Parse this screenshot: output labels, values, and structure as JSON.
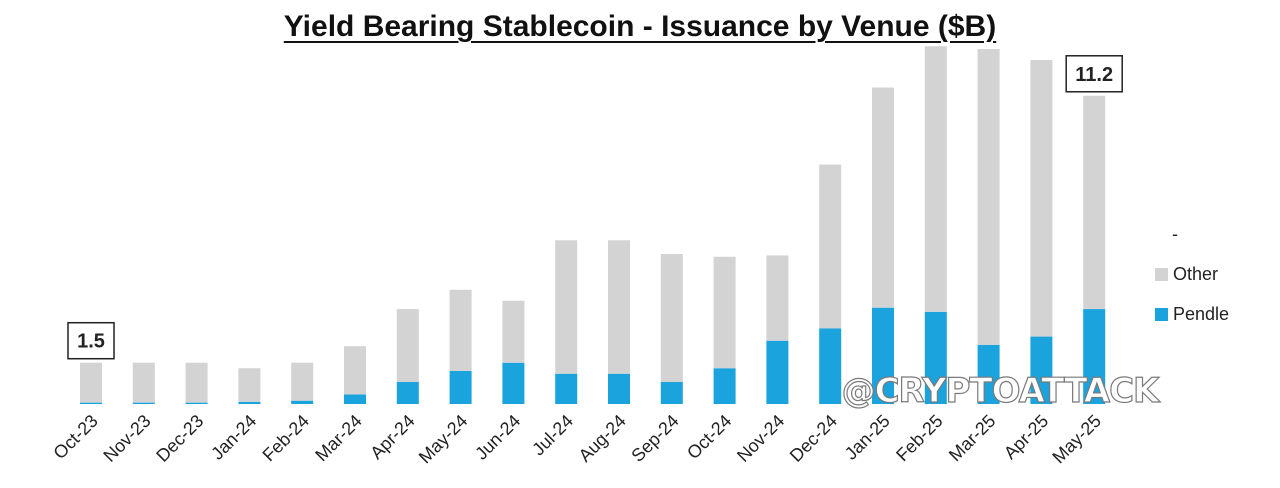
{
  "chart_data": {
    "type": "bar",
    "stacked": true,
    "title": "Yield Bearing Stablecoin - Issuance by Venue ($B)",
    "xlabel": "",
    "ylabel": "",
    "ylim": [
      0,
      12.5
    ],
    "grid": false,
    "legend_position": "right",
    "categories": [
      "Oct-23",
      "Nov-23",
      "Dec-23",
      "Jan-24",
      "Feb-24",
      "Mar-24",
      "Apr-24",
      "May-24",
      "Jun-24",
      "Jul-24",
      "Aug-24",
      "Sep-24",
      "Oct-24",
      "Nov-24",
      "Dec-24",
      "Jan-25",
      "Feb-25",
      "Mar-25",
      "Apr-25",
      "May-25"
    ],
    "series": [
      {
        "name": "Pendle",
        "color": "#1aa3dc",
        "values": [
          0.05,
          0.05,
          0.05,
          0.08,
          0.12,
          0.35,
          0.8,
          1.2,
          1.5,
          1.1,
          1.1,
          0.8,
          1.3,
          2.3,
          2.75,
          3.5,
          3.35,
          2.15,
          2.45,
          3.45
        ]
      },
      {
        "name": "Other",
        "color": "#d3d3d3",
        "values": [
          1.45,
          1.45,
          1.45,
          1.22,
          1.38,
          1.75,
          2.65,
          2.95,
          2.25,
          4.85,
          4.85,
          4.65,
          4.05,
          3.1,
          5.95,
          8.0,
          9.65,
          10.75,
          10.05,
          7.75
        ]
      }
    ],
    "annotations": [
      {
        "category": "Oct-23",
        "label": "1.5"
      },
      {
        "category": "May-25",
        "label": "11.2"
      }
    ]
  },
  "legend": {
    "extra_entry": "-",
    "items": [
      {
        "label": "Other",
        "color": "#d3d3d3"
      },
      {
        "label": "Pendle",
        "color": "#1aa3dc"
      }
    ]
  },
  "watermark": "@CRYPTOATTACK"
}
